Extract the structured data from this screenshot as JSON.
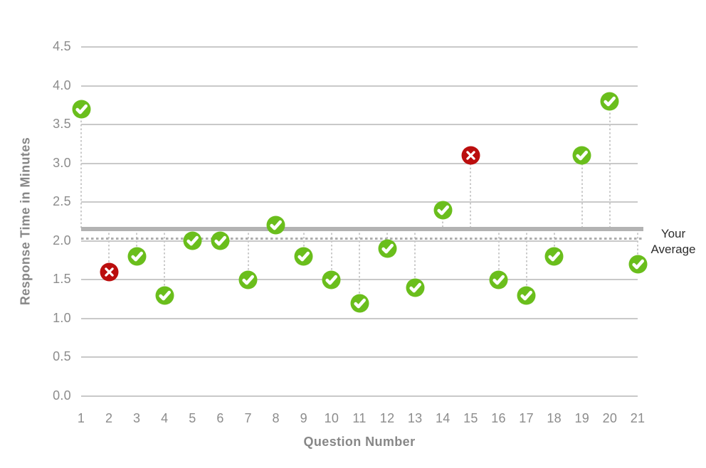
{
  "chart_data": {
    "type": "scatter",
    "x": [
      1,
      2,
      3,
      4,
      5,
      6,
      7,
      8,
      9,
      10,
      11,
      12,
      13,
      14,
      15,
      16,
      17,
      18,
      19,
      20,
      21
    ],
    "series": [
      {
        "name": "Response Time",
        "values": [
          3.7,
          1.6,
          1.8,
          1.3,
          2.0,
          2.0,
          1.5,
          2.2,
          1.8,
          1.5,
          1.2,
          1.9,
          1.4,
          2.4,
          3.1,
          1.5,
          1.3,
          1.8,
          3.1,
          3.8,
          1.7
        ],
        "statuses": [
          "correct",
          "incorrect",
          "correct",
          "correct",
          "correct",
          "correct",
          "correct",
          "correct",
          "correct",
          "correct",
          "correct",
          "correct",
          "correct",
          "correct",
          "incorrect",
          "correct",
          "correct",
          "correct",
          "correct",
          "correct",
          "correct"
        ]
      }
    ],
    "xlabel": "Question Number",
    "ylabel": "Response Time in Minutes",
    "ylim": [
      0,
      4.5
    ],
    "yticks": [
      "4.5",
      "4.0",
      "3.5",
      "3.0",
      "2.5",
      "2.0",
      "1.5",
      "1.0",
      "0.5",
      "0.0"
    ],
    "grid": true,
    "legend_position": "none",
    "your_average": {
      "label": "Your Average",
      "value": 2.03,
      "style": "dotted"
    },
    "reference_line": {
      "value": 2.15,
      "style": "solid-thick"
    },
    "marker_meaning": {
      "correct": "green circle with white check",
      "incorrect": "red circle with white x"
    }
  },
  "colors": {
    "correct": "#6abe1c",
    "incorrect": "#bb0e0e",
    "grid": "#c9c9c9",
    "axis_text": "#8c8c8c",
    "title_text": "#878787",
    "avg_solid": "#b3b3b3",
    "avg_dotted": "#aeaeae",
    "stem": "#cacaca",
    "annotation_text": "#2d2d2d",
    "marker_glyph": "#ffffff"
  },
  "icons": {
    "correct": "check-icon",
    "incorrect": "x-icon"
  }
}
